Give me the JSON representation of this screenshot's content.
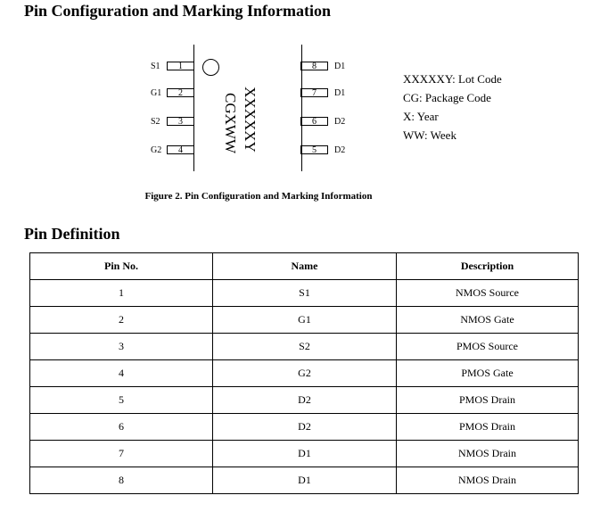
{
  "title": "Pin Configuration and Marking Information",
  "diagram": {
    "left_pins": [
      {
        "name": "S1",
        "num": "1"
      },
      {
        "name": "G1",
        "num": "2"
      },
      {
        "name": "S2",
        "num": "3"
      },
      {
        "name": "G2",
        "num": "4"
      }
    ],
    "right_pins": [
      {
        "name": "D1",
        "num": "8"
      },
      {
        "name": "D1",
        "num": "7"
      },
      {
        "name": "D2",
        "num": "6"
      },
      {
        "name": "D2",
        "num": "5"
      }
    ],
    "marking_line1": "XXXXXY",
    "marking_line2": "CGXWW",
    "legend": [
      "XXXXXY: Lot Code",
      "CG: Package Code",
      "X: Year",
      "WW: Week"
    ],
    "caption": "Figure 2. Pin Configuration and Marking Information"
  },
  "pin_definition": {
    "title": "Pin Definition",
    "headers": [
      "Pin No.",
      "Name",
      "Description"
    ],
    "rows": [
      [
        "1",
        "S1",
        "NMOS Source"
      ],
      [
        "2",
        "G1",
        "NMOS Gate"
      ],
      [
        "3",
        "S2",
        "PMOS Source"
      ],
      [
        "4",
        "G2",
        "PMOS Gate"
      ],
      [
        "5",
        "D2",
        "PMOS Drain"
      ],
      [
        "6",
        "D2",
        "PMOS Drain"
      ],
      [
        "7",
        "D1",
        "NMOS Drain"
      ],
      [
        "8",
        "D1",
        "NMOS Drain"
      ]
    ]
  }
}
